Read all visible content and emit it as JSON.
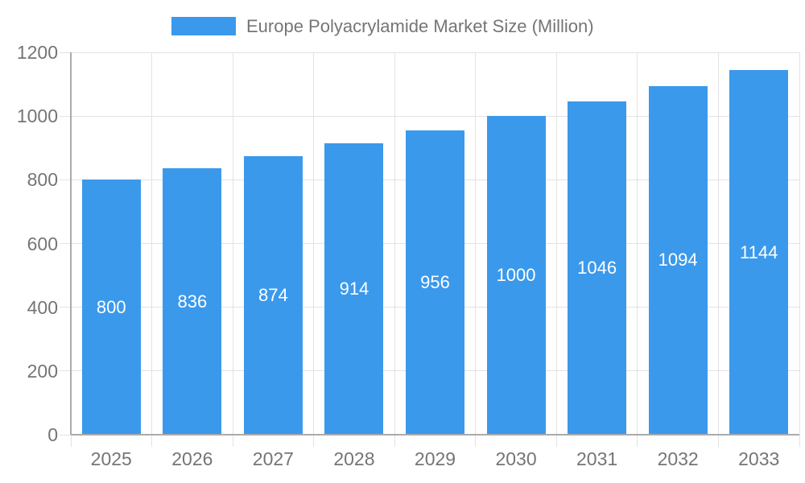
{
  "chart_data": {
    "type": "bar",
    "title": "Europe Polyacrylamide Market Size (Million)",
    "categories": [
      "2025",
      "2026",
      "2027",
      "2028",
      "2029",
      "2030",
      "2031",
      "2032",
      "2033"
    ],
    "values": [
      800,
      836,
      874,
      914,
      956,
      1000,
      1046,
      1094,
      1144
    ],
    "series": [
      {
        "name": "Europe Polyacrylamide Market Size (Million)",
        "values": [
          800,
          836,
          874,
          914,
          956,
          1000,
          1046,
          1094,
          1144
        ]
      }
    ],
    "xlabel": "",
    "ylabel": "",
    "ylim": [
      0,
      1200
    ],
    "yticks": [
      0,
      200,
      400,
      600,
      800,
      1000,
      1200
    ],
    "grid": true,
    "legend_position": "top",
    "value_label_position": "inside-center"
  },
  "legend": {
    "label": "Europe Polyacrylamide Market Size (Million)"
  },
  "colors": {
    "bar": "#3B99EC",
    "grid": "#E3E3E3",
    "axis": "#ABABAB",
    "text": "#757575",
    "value_label": "#FFFFFF",
    "background": "#FFFFFF"
  }
}
